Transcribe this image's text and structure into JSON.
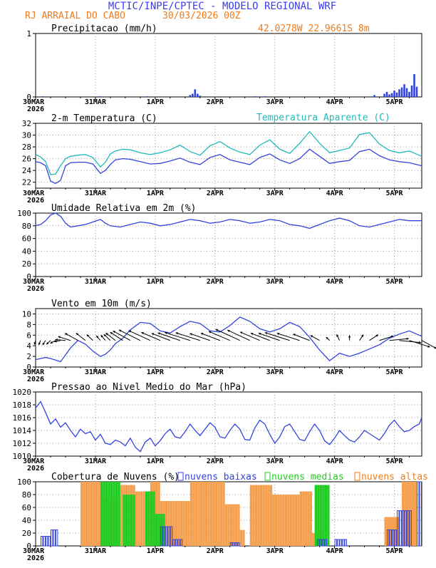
{
  "header": {
    "title": "MCTIC/INPE/CPTEC - MODELO REGIONAL WRF",
    "location": "RJ ARRAIAL DO CABO",
    "run": "30/03/2026 00Z",
    "coords": "42.0278W 22.9661S 8m"
  },
  "colors": {
    "title": "#3b3bf0",
    "orange": "#f07b1a",
    "blue": "#3344dd",
    "cyan": "#22b8b8",
    "green": "#22cc22",
    "cloud_orange": "#f5a04e"
  },
  "x_axis": {
    "days": [
      "30MAR",
      "31MAR",
      "1APR",
      "2APR",
      "3APR",
      "4APR",
      "5APR"
    ],
    "year": "2026"
  },
  "chart_data": [
    {
      "type": "bar",
      "title": "Precipitacao (mm/h)",
      "ylim": [
        0,
        1
      ],
      "yticks": [
        "0",
        "1"
      ],
      "x_hours": [
        3,
        26,
        45,
        62,
        63,
        64,
        65,
        66,
        88,
        92,
        136,
        140,
        141,
        142,
        143,
        144,
        145,
        146,
        147,
        148,
        149,
        150,
        151,
        152,
        153
      ],
      "values": [
        0.01,
        0.01,
        0.01,
        0.03,
        0.05,
        0.12,
        0.05,
        0.02,
        0.01,
        0.01,
        0.03,
        0.05,
        0.08,
        0.04,
        0.06,
        0.1,
        0.07,
        0.12,
        0.15,
        0.2,
        0.14,
        0.08,
        0.18,
        0.36,
        0.16
      ]
    },
    {
      "type": "line",
      "title": "2-m Temperatura (C)",
      "legend": "Temperatura Aparente (C)",
      "ylim": [
        21,
        32
      ],
      "yticks": [
        "22",
        "24",
        "26",
        "28",
        "30",
        "32"
      ],
      "series": [
        {
          "name": "Temperatura",
          "x": [
            0,
            2,
            4,
            6,
            8,
            10,
            12,
            14,
            17,
            20,
            23,
            26,
            28,
            30,
            32,
            35,
            38,
            42,
            46,
            50,
            54,
            58,
            62,
            66,
            70,
            74,
            78,
            82,
            86,
            90,
            94,
            98,
            102,
            106,
            110,
            114,
            118,
            122,
            126,
            130,
            134,
            138,
            142,
            146,
            150,
            155
          ],
          "values": [
            25.5,
            25.3,
            24.8,
            22.2,
            21.8,
            22.3,
            24.8,
            25.3,
            25.4,
            25.4,
            25.1,
            23.5,
            24.0,
            25.0,
            25.8,
            26.0,
            25.9,
            25.5,
            25.1,
            25.2,
            25.6,
            26.1,
            25.4,
            25.0,
            26.2,
            26.7,
            25.8,
            25.4,
            25.0,
            26.2,
            26.8,
            25.8,
            25.2,
            26.0,
            27.6,
            26.4,
            25.2,
            25.5,
            25.7,
            27.2,
            27.6,
            26.5,
            25.8,
            25.5,
            25.3,
            24.8
          ]
        },
        {
          "name": "Temperatura Aparente",
          "x": [
            0,
            2,
            4,
            6,
            8,
            10,
            12,
            14,
            17,
            20,
            23,
            26,
            28,
            30,
            32,
            35,
            38,
            42,
            46,
            50,
            54,
            58,
            62,
            66,
            70,
            74,
            78,
            82,
            86,
            90,
            94,
            98,
            102,
            106,
            110,
            114,
            118,
            122,
            126,
            130,
            134,
            138,
            142,
            146,
            150,
            155
          ],
          "values": [
            26.7,
            26.3,
            25.5,
            23.3,
            23.4,
            24.8,
            26.0,
            26.4,
            26.6,
            26.7,
            26.2,
            24.6,
            25.4,
            26.8,
            27.3,
            27.6,
            27.5,
            27.0,
            26.7,
            27.0,
            27.5,
            28.3,
            27.2,
            26.6,
            28.2,
            28.9,
            27.8,
            27.1,
            26.7,
            28.3,
            29.2,
            27.6,
            26.9,
            28.6,
            30.6,
            28.6,
            27.0,
            27.4,
            27.8,
            30.1,
            30.4,
            28.5,
            27.4,
            27.0,
            27.3,
            26.4
          ]
        }
      ]
    },
    {
      "type": "line",
      "title": "Umidade Relativa em 2m (%)",
      "ylim": [
        0,
        100
      ],
      "yticks": [
        "0",
        "20",
        "40",
        "60",
        "80",
        "100"
      ],
      "series": [
        {
          "name": "Umidade Relativa",
          "x": [
            0,
            2,
            4,
            6,
            8,
            10,
            12,
            14,
            17,
            20,
            23,
            26,
            28,
            30,
            34,
            38,
            42,
            46,
            50,
            54,
            58,
            62,
            66,
            70,
            74,
            78,
            82,
            86,
            90,
            94,
            98,
            102,
            106,
            110,
            114,
            118,
            122,
            126,
            130,
            134,
            138,
            142,
            146,
            150,
            155
          ],
          "values": [
            80,
            82,
            88,
            97,
            100,
            95,
            84,
            78,
            80,
            82,
            86,
            90,
            84,
            80,
            78,
            82,
            86,
            84,
            80,
            82,
            86,
            90,
            88,
            84,
            86,
            90,
            88,
            84,
            86,
            90,
            88,
            82,
            80,
            76,
            82,
            88,
            92,
            88,
            80,
            78,
            82,
            86,
            90,
            88,
            88
          ]
        }
      ]
    },
    {
      "type": "line",
      "title": "Vento em 10m (m/s)",
      "ylim": [
        0,
        11
      ],
      "yticks": [
        "0",
        "2",
        "4",
        "6",
        "8",
        "10"
      ],
      "series": [
        {
          "name": "Vento",
          "x": [
            0,
            2,
            4,
            6,
            8,
            10,
            12,
            14,
            17,
            20,
            23,
            26,
            28,
            30,
            32,
            35,
            38,
            42,
            46,
            50,
            54,
            58,
            62,
            66,
            70,
            74,
            78,
            82,
            86,
            90,
            94,
            98,
            102,
            106,
            110,
            114,
            118,
            122,
            126,
            130,
            134,
            138,
            142,
            146,
            150,
            155
          ],
          "values": [
            1.4,
            1.6,
            1.8,
            1.6,
            1.3,
            1.0,
            2.3,
            3.6,
            5.0,
            4.3,
            3.0,
            2.0,
            2.4,
            3.2,
            4.4,
            5.4,
            7.0,
            8.4,
            8.2,
            6.8,
            6.4,
            7.6,
            8.6,
            8.2,
            6.8,
            6.6,
            7.8,
            9.4,
            8.6,
            7.2,
            6.6,
            7.2,
            8.4,
            7.6,
            5.6,
            3.2,
            1.2,
            2.6,
            2.0,
            2.6,
            3.4,
            4.2,
            5.4,
            6.2,
            6.8,
            5.8
          ]
        }
      ],
      "directions_deg": [
        350,
        347,
        340,
        330,
        315,
        290,
        260,
        240,
        225,
        215,
        210,
        205,
        205,
        210,
        215,
        220,
        225,
        228,
        230,
        232,
        235,
        238,
        240,
        240,
        238,
        235,
        232,
        230,
        230,
        232,
        235,
        238,
        240,
        240,
        235,
        225,
        210,
        195,
        180,
        160,
        140,
        120,
        100,
        80,
        60,
        45
      ]
    },
    {
      "type": "line",
      "title": "Pressao ao Nivel Medio do Mar (hPa)",
      "ylim": [
        1010,
        1020
      ],
      "yticks": [
        "1010",
        "1012",
        "1014",
        "1016",
        "1018",
        "1020"
      ],
      "series": [
        {
          "name": "Pressao",
          "x": [
            0,
            2,
            4,
            6,
            8,
            10,
            12,
            14,
            16,
            18,
            20,
            22,
            24,
            26,
            28,
            30,
            32,
            34,
            36,
            38,
            40,
            42,
            44,
            46,
            48,
            50,
            52,
            54,
            56,
            58,
            60,
            62,
            64,
            66,
            68,
            70,
            72,
            74,
            76,
            78,
            80,
            82,
            84,
            86,
            88,
            90,
            92,
            94,
            96,
            98,
            100,
            102,
            104,
            106,
            108,
            110,
            112,
            114,
            116,
            118,
            120,
            122,
            124,
            126,
            128,
            130,
            132,
            134,
            136,
            138,
            140,
            142,
            144,
            146,
            148,
            150,
            152,
            154,
            155
          ],
          "values": [
            1017.5,
            1018.5,
            1016.8,
            1015.0,
            1015.8,
            1014.5,
            1015.2,
            1014.0,
            1013.0,
            1014.2,
            1013.5,
            1013.8,
            1012.5,
            1013.4,
            1012.0,
            1011.8,
            1012.5,
            1012.2,
            1011.6,
            1012.8,
            1011.4,
            1010.7,
            1012.2,
            1012.8,
            1011.6,
            1012.4,
            1013.5,
            1014.2,
            1013.0,
            1012.8,
            1013.8,
            1015.0,
            1014.0,
            1013.2,
            1014.2,
            1015.2,
            1014.5,
            1013.0,
            1012.8,
            1014.0,
            1015.0,
            1014.2,
            1012.6,
            1012.5,
            1014.4,
            1015.6,
            1015.0,
            1013.4,
            1012.0,
            1013.0,
            1014.6,
            1015.0,
            1013.8,
            1012.6,
            1012.4,
            1013.8,
            1015.0,
            1014.0,
            1012.4,
            1011.8,
            1012.8,
            1014.0,
            1013.2,
            1012.5,
            1012.2,
            1013.0,
            1014.0,
            1013.5,
            1013.0,
            1012.5,
            1013.5,
            1014.8,
            1015.6,
            1014.6,
            1013.8,
            1014.0,
            1014.6,
            1015.0,
            1016.0
          ]
        }
      ]
    },
    {
      "type": "bar",
      "title": "Cobertura de Nuvens (%)",
      "legend": [
        "nuvens baixas",
        "nuvens medias",
        "nuvens altas"
      ],
      "ylim": [
        0,
        100
      ],
      "yticks": [
        "0",
        "20",
        "40",
        "60",
        "80",
        "100"
      ],
      "series": [
        {
          "name": "nuvens altas",
          "ranges": [
            {
              "from": 18,
              "to": 26,
              "value": 100
            },
            {
              "from": 26,
              "to": 34,
              "value": 75
            },
            {
              "from": 34,
              "to": 40,
              "value": 95
            },
            {
              "from": 40,
              "to": 46,
              "value": 85
            },
            {
              "from": 46,
              "to": 50,
              "value": 100
            },
            {
              "from": 50,
              "to": 62,
              "value": 70
            },
            {
              "from": 62,
              "to": 76,
              "value": 100
            },
            {
              "from": 76,
              "to": 82,
              "value": 65
            },
            {
              "from": 82,
              "to": 84,
              "value": 25
            },
            {
              "from": 86,
              "to": 95,
              "value": 95
            },
            {
              "from": 95,
              "to": 106,
              "value": 80
            },
            {
              "from": 106,
              "to": 111,
              "value": 85
            },
            {
              "from": 111,
              "to": 115,
              "value": 20
            },
            {
              "from": 140,
              "to": 146,
              "value": 45
            },
            {
              "from": 147,
              "to": 153,
              "value": 100
            }
          ]
        },
        {
          "name": "nuvens medias",
          "ranges": [
            {
              "from": 26,
              "to": 34,
              "value": 100
            },
            {
              "from": 35,
              "to": 40,
              "value": 80
            },
            {
              "from": 44,
              "to": 48,
              "value": 85
            },
            {
              "from": 48,
              "to": 52,
              "value": 50
            },
            {
              "from": 112,
              "to": 118,
              "value": 95
            }
          ]
        },
        {
          "name": "nuvens baixas",
          "ranges": [
            {
              "from": 2,
              "to": 6,
              "value": 15
            },
            {
              "from": 6,
              "to": 9,
              "value": 25
            },
            {
              "from": 50,
              "to": 55,
              "value": 30
            },
            {
              "from": 55,
              "to": 59,
              "value": 10
            },
            {
              "from": 78,
              "to": 82,
              "value": 5
            },
            {
              "from": 113,
              "to": 117,
              "value": 10
            },
            {
              "from": 120,
              "to": 125,
              "value": 10
            },
            {
              "from": 141,
              "to": 145,
              "value": 25
            },
            {
              "from": 145,
              "to": 151,
              "value": 55
            },
            {
              "from": 153,
              "to": 155,
              "value": 100
            }
          ]
        }
      ]
    }
  ]
}
